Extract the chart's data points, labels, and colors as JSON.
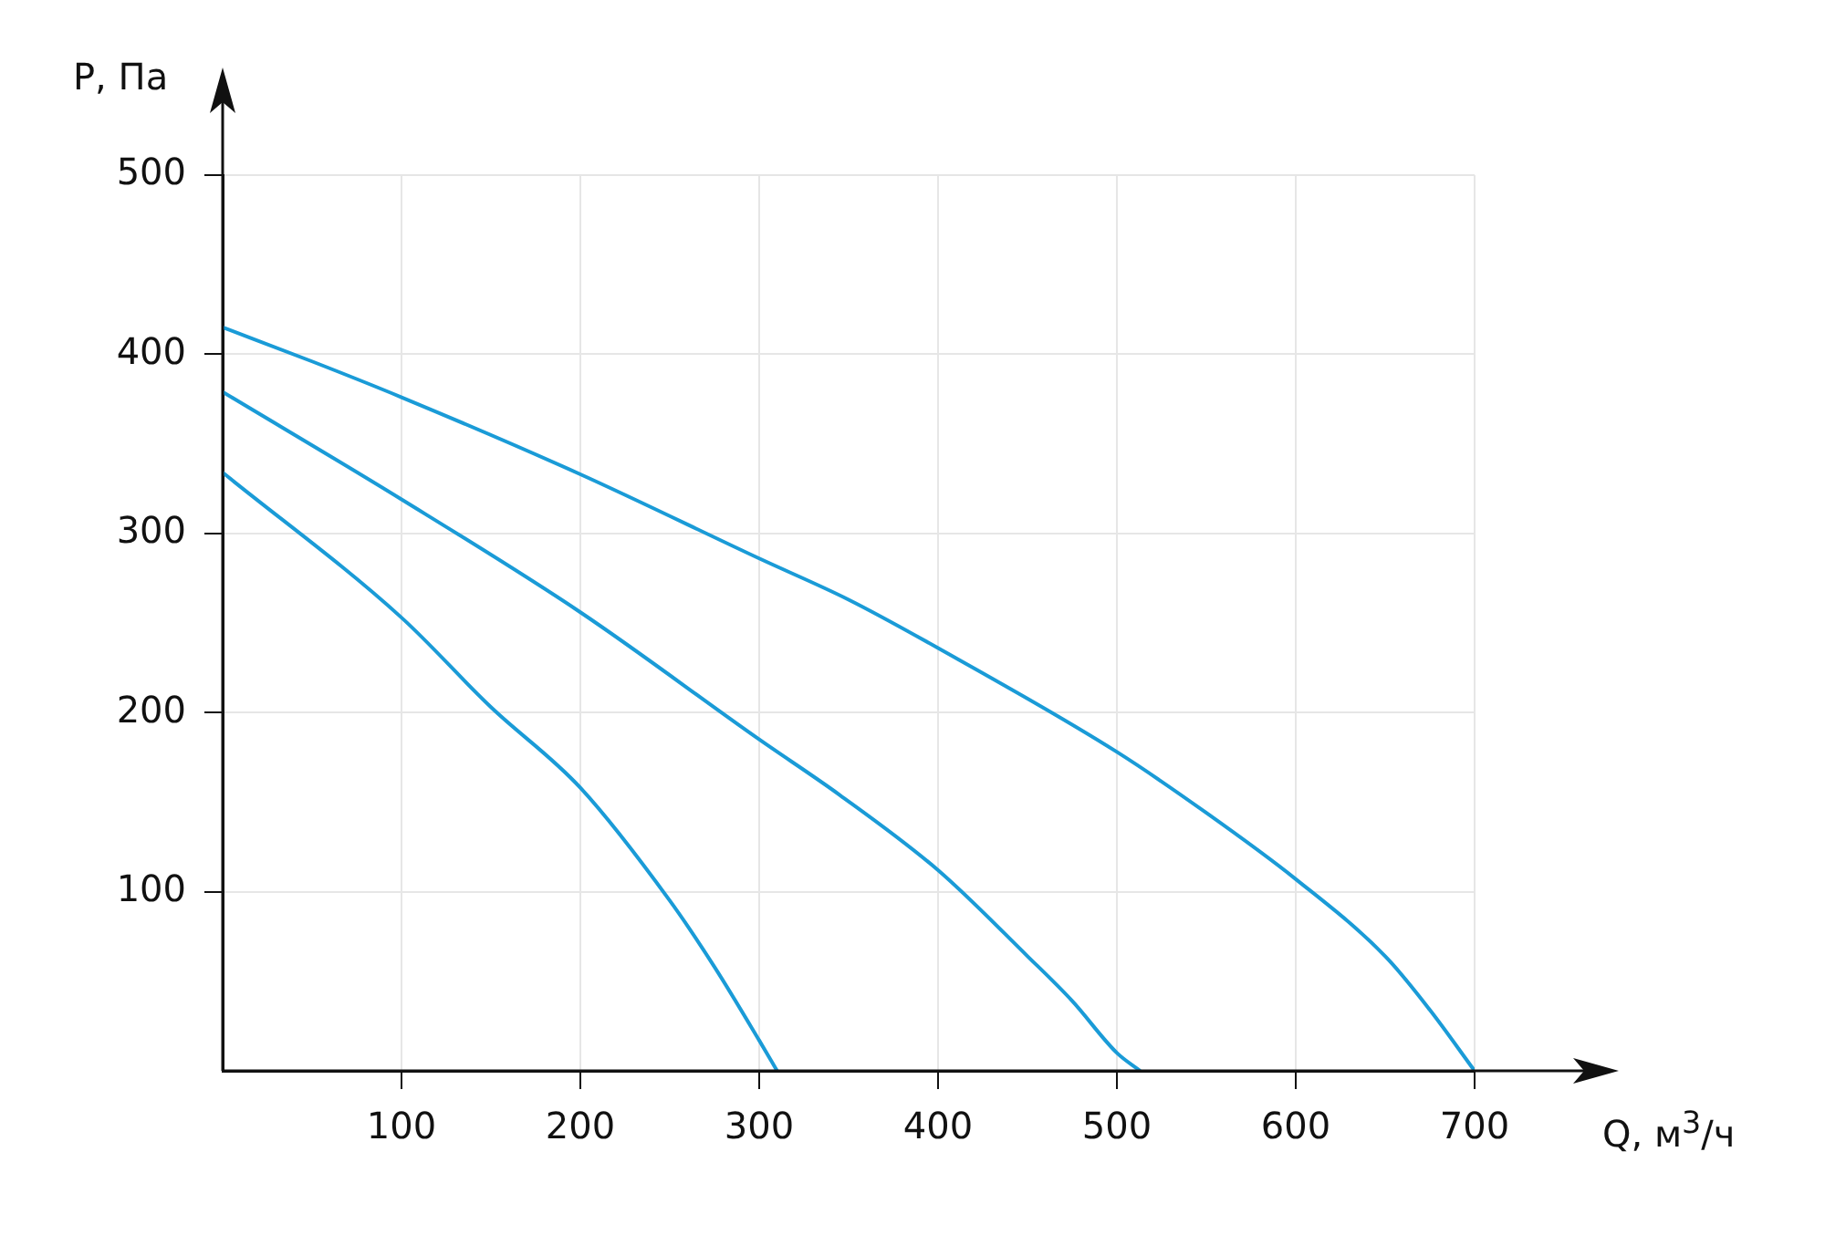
{
  "chart_data": {
    "type": "line",
    "xlabel": "Q, м$^{3}$/ч",
    "ylabel": "P, Па",
    "xlim": [
      0,
      700
    ],
    "ylim": [
      0,
      500
    ],
    "xticks": [
      100,
      200,
      300,
      400,
      500,
      600,
      700
    ],
    "yticks": [
      100,
      200,
      300,
      400,
      500
    ],
    "grid": true,
    "legend": false,
    "marker": "none",
    "line_style": "solid",
    "series": [
      {
        "color": "#1a9bd7",
        "x": [
          0,
          50,
          100,
          200,
          300,
          350,
          400,
          500,
          550,
          600,
          650,
          675,
          700
        ],
        "values": [
          415,
          396,
          376,
          333,
          286,
          263,
          236,
          178,
          144,
          107,
          64,
          34,
          0
        ]
      },
      {
        "color": "#1a9bd7",
        "x": [
          0,
          100,
          200,
          300,
          345,
          400,
          450,
          475,
          500,
          513
        ],
        "values": [
          379,
          319,
          256,
          185,
          154,
          112,
          64,
          39,
          10,
          0
        ]
      },
      {
        "color": "#1a9bd7",
        "x": [
          0,
          100,
          150,
          200,
          250,
          275,
          300,
          310
        ],
        "values": [
          334,
          253,
          203,
          158,
          95,
          58,
          17,
          0
        ]
      }
    ]
  }
}
